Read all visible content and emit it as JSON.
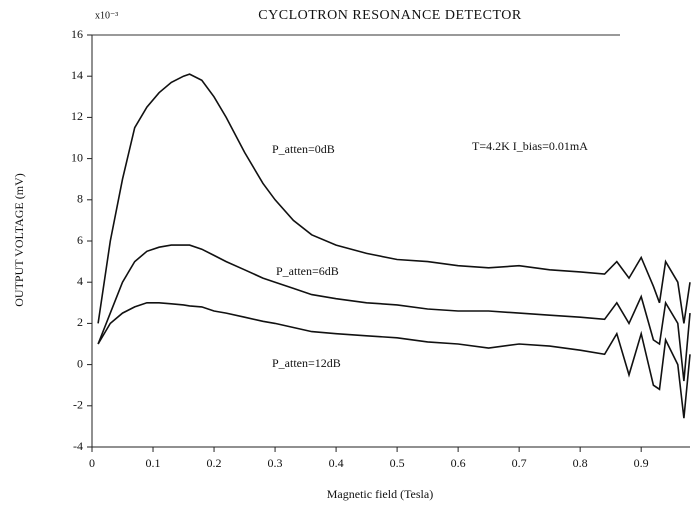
{
  "chart_data": {
    "type": "line",
    "title": "CYCLOTRON RESONANCE DETECTOR",
    "scale_label": "x10⁻³",
    "x_label": "Magnetic field (Tesla)",
    "y_label": "OUTPUT VOLTAGE (mV)",
    "annotations": [
      "T=4.2K  I_bias=0.01mA"
    ],
    "x": [
      0.01,
      0.03,
      0.05,
      0.07,
      0.09,
      0.11,
      0.13,
      0.15,
      0.16,
      0.18,
      0.2,
      0.22,
      0.25,
      0.28,
      0.3,
      0.33,
      0.36,
      0.4,
      0.45,
      0.5,
      0.55,
      0.6,
      0.65,
      0.7,
      0.75,
      0.8,
      0.84,
      0.86,
      0.88,
      0.9,
      0.92,
      0.93,
      0.94,
      0.96,
      0.97,
      0.98
    ],
    "series": [
      {
        "name": "P_atten=0dB",
        "color": "#111111",
        "values": [
          2,
          6,
          9,
          11.5,
          12.5,
          13.2,
          13.7,
          14,
          14.1,
          13.8,
          13,
          12,
          10.3,
          8.8,
          8,
          7,
          6.3,
          5.8,
          5.4,
          5.1,
          5,
          4.8,
          4.7,
          4.8,
          4.6,
          4.5,
          4.4,
          5,
          4.2,
          5.2,
          3.8,
          3,
          5,
          4,
          2,
          4
        ]
      },
      {
        "name": "P_atten=6dB",
        "color": "#111111",
        "values": [
          1,
          2.5,
          4,
          5,
          5.5,
          5.7,
          5.8,
          5.8,
          5.8,
          5.6,
          5.3,
          5,
          4.6,
          4.2,
          4,
          3.7,
          3.4,
          3.2,
          3,
          2.9,
          2.7,
          2.6,
          2.6,
          2.5,
          2.4,
          2.3,
          2.2,
          3,
          2,
          3.3,
          1.2,
          1,
          3,
          2,
          -0.8,
          2.5
        ]
      },
      {
        "name": "P_atten=12dB",
        "color": "#111111",
        "values": [
          1,
          2,
          2.5,
          2.8,
          3,
          3,
          2.95,
          2.9,
          2.85,
          2.8,
          2.6,
          2.5,
          2.3,
          2.1,
          2,
          1.8,
          1.6,
          1.5,
          1.4,
          1.3,
          1.1,
          1,
          0.8,
          1,
          0.9,
          0.7,
          0.5,
          1.5,
          -0.5,
          1.5,
          -1,
          -1.2,
          1.2,
          0,
          -2.6,
          0.5
        ]
      }
    ],
    "xlim": [
      0,
      0.98
    ],
    "xticks": [
      0,
      0.1,
      0.2,
      0.3,
      0.4,
      0.5,
      0.6,
      0.7,
      0.8,
      0.9
    ],
    "ylim": [
      -4,
      16
    ],
    "yticks": [
      -4,
      -2,
      0,
      2,
      4,
      6,
      8,
      10,
      12,
      14,
      16
    ],
    "grid": false
  }
}
